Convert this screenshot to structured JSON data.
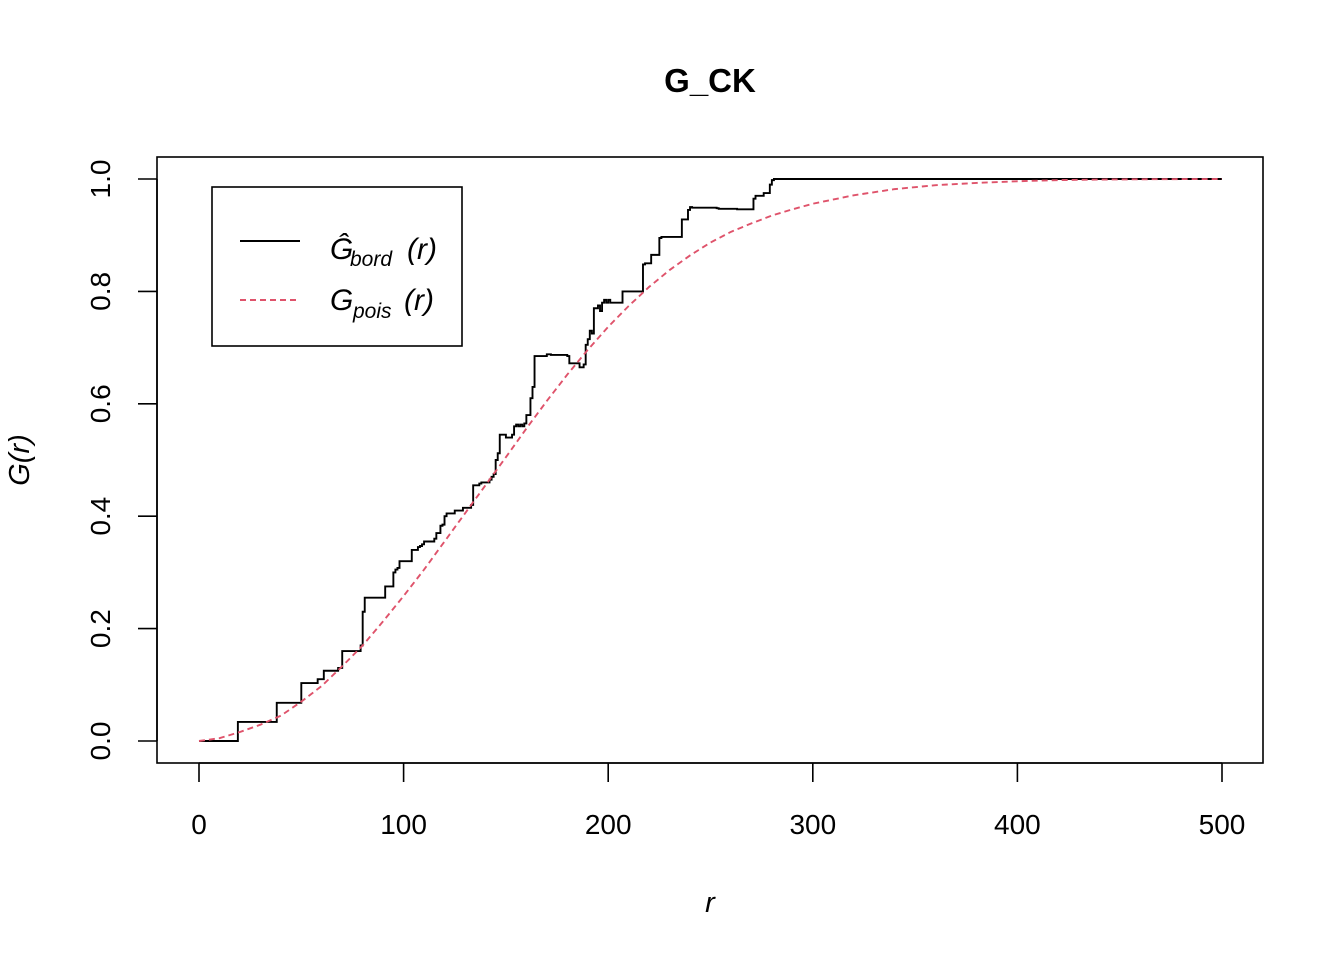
{
  "chart_data": {
    "type": "line",
    "title": "G_CK",
    "xlabel": "r",
    "ylabel": "G(r)",
    "xlim": [
      0,
      500
    ],
    "ylim": [
      0,
      1
    ],
    "x_ticks": [
      0,
      100,
      200,
      300,
      400,
      500
    ],
    "y_ticks": [
      0.0,
      0.2,
      0.4,
      0.6,
      0.8,
      1.0
    ],
    "x_tick_labels": [
      "0",
      "100",
      "200",
      "300",
      "400",
      "500"
    ],
    "y_tick_labels": [
      "0.0",
      "0.2",
      "0.4",
      "0.6",
      "0.8",
      "1.0"
    ],
    "grid": false,
    "legend_position": "top-left",
    "series": [
      {
        "name": "Ĝ_bord(r)",
        "label_main": "Ĝ",
        "label_sub": "bord",
        "label_tail": "(r)",
        "color": "#000000",
        "line_style": "solid",
        "step": true,
        "x": [
          0,
          18,
          19,
          37,
          38,
          48,
          50,
          57,
          58,
          60,
          61,
          67,
          68,
          69,
          70,
          77,
          79,
          80,
          81,
          90,
          91,
          95,
          96,
          97,
          98,
          103,
          104,
          106,
          107,
          108,
          109,
          110,
          115,
          116,
          117,
          118,
          119,
          120,
          121,
          124,
          125,
          128,
          129,
          133,
          134,
          136,
          137,
          138,
          141,
          142,
          143,
          144,
          145,
          146,
          147,
          150,
          153,
          154,
          155,
          156,
          157,
          158,
          159,
          160,
          162,
          163,
          164,
          170,
          172,
          180,
          181,
          185,
          186,
          188,
          189,
          190,
          191,
          192,
          193,
          195,
          196,
          197,
          198,
          199,
          200,
          201,
          205,
          207,
          208,
          216,
          217,
          218,
          220,
          221,
          223,
          225,
          226,
          235,
          236,
          239,
          240,
          241,
          242,
          253,
          254,
          263,
          270,
          271,
          272,
          275,
          276,
          278,
          279,
          280,
          281,
          500
        ],
        "y": [
          0.0,
          0.0,
          0.034,
          0.034,
          0.068,
          0.068,
          0.103,
          0.103,
          0.11,
          0.11,
          0.125,
          0.125,
          0.13,
          0.13,
          0.16,
          0.16,
          0.17,
          0.23,
          0.255,
          0.255,
          0.275,
          0.3,
          0.305,
          0.308,
          0.32,
          0.32,
          0.34,
          0.34,
          0.345,
          0.347,
          0.35,
          0.355,
          0.36,
          0.37,
          0.37,
          0.383,
          0.385,
          0.4,
          0.405,
          0.405,
          0.41,
          0.41,
          0.415,
          0.42,
          0.455,
          0.455,
          0.458,
          0.46,
          0.46,
          0.465,
          0.47,
          0.475,
          0.5,
          0.512,
          0.545,
          0.54,
          0.545,
          0.56,
          0.563,
          0.56,
          0.563,
          0.56,
          0.565,
          0.58,
          0.61,
          0.63,
          0.685,
          0.688,
          0.687,
          0.685,
          0.672,
          0.672,
          0.665,
          0.67,
          0.705,
          0.715,
          0.73,
          0.725,
          0.77,
          0.775,
          0.765,
          0.78,
          0.785,
          0.78,
          0.785,
          0.78,
          0.78,
          0.8,
          0.8,
          0.8,
          0.848,
          0.85,
          0.85,
          0.865,
          0.865,
          0.895,
          0.897,
          0.897,
          0.928,
          0.945,
          0.95,
          0.949,
          0.949,
          0.948,
          0.947,
          0.946,
          0.946,
          0.965,
          0.97,
          0.97,
          0.975,
          0.975,
          0.99,
          0.998,
          1.0,
          1.0
        ]
      },
      {
        "name": "G_pois(r)",
        "label_main": "G",
        "label_sub": "pois",
        "label_tail": "(r)",
        "color": "#DF536B",
        "line_style": "dashed",
        "step": false,
        "x": [
          0,
          10,
          20,
          30,
          40,
          50,
          60,
          70,
          80,
          90,
          100,
          110,
          120,
          130,
          140,
          150,
          160,
          170,
          180,
          190,
          200,
          210,
          220,
          230,
          240,
          250,
          260,
          270,
          280,
          290,
          300,
          320,
          340,
          360,
          380,
          400,
          420,
          440,
          460,
          480,
          500
        ],
        "y": [
          0.0,
          0.005,
          0.016,
          0.029,
          0.045,
          0.07,
          0.098,
          0.133,
          0.17,
          0.213,
          0.258,
          0.305,
          0.355,
          0.405,
          0.455,
          0.505,
          0.556,
          0.605,
          0.652,
          0.696,
          0.737,
          0.774,
          0.808,
          0.838,
          0.864,
          0.887,
          0.906,
          0.921,
          0.935,
          0.946,
          0.956,
          0.971,
          0.982,
          0.989,
          0.993,
          0.996,
          0.998,
          0.999,
          0.9995,
          0.9998,
          1.0
        ]
      }
    ]
  }
}
